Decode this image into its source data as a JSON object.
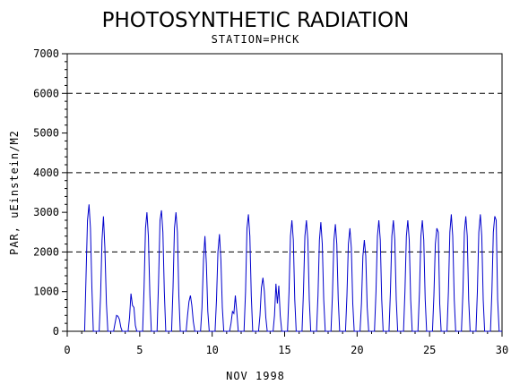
{
  "chart_data": {
    "type": "line",
    "title": "PHOTOSYNTHETIC RADIATION",
    "subtitle": "STATION=PHCK",
    "xlabel": "NOV 1998",
    "ylabel": "PAR, uEinstein/M2",
    "xlim": [
      0,
      30
    ],
    "ylim": [
      0,
      7000
    ],
    "x_ticks": [
      0,
      5,
      10,
      15,
      20,
      25,
      30
    ],
    "y_ticks": [
      0,
      1000,
      2000,
      3000,
      4000,
      5000,
      6000,
      7000
    ],
    "reference_lines": [
      2000,
      4000,
      6000
    ],
    "grid": false,
    "legend": "none",
    "series": [
      {
        "color": "#0000cc",
        "x": [
          1.2,
          1.3,
          1.4,
          1.5,
          1.6,
          1.7,
          1.8,
          2.2,
          2.3,
          2.4,
          2.5,
          2.6,
          2.7,
          2.8,
          3.2,
          3.3,
          3.4,
          3.5,
          3.6,
          3.7,
          3.8,
          4.2,
          4.3,
          4.4,
          4.5,
          4.6,
          4.7,
          4.8,
          5.2,
          5.3,
          5.4,
          5.5,
          5.6,
          5.7,
          5.8,
          6.2,
          6.3,
          6.4,
          6.5,
          6.6,
          6.7,
          6.8,
          7.2,
          7.3,
          7.4,
          7.5,
          7.6,
          7.7,
          7.8,
          8.2,
          8.3,
          8.4,
          8.5,
          8.6,
          8.7,
          8.8,
          9.2,
          9.3,
          9.4,
          9.5,
          9.6,
          9.7,
          9.8,
          10.2,
          10.3,
          10.4,
          10.5,
          10.6,
          10.7,
          10.8,
          11.2,
          11.3,
          11.4,
          11.5,
          11.6,
          11.7,
          11.8,
          12.2,
          12.3,
          12.4,
          12.5,
          12.6,
          12.7,
          12.8,
          13.2,
          13.3,
          13.4,
          13.5,
          13.6,
          13.7,
          13.8,
          14.2,
          14.3,
          14.4,
          14.5,
          14.6,
          14.7,
          14.8,
          15.2,
          15.3,
          15.4,
          15.5,
          15.6,
          15.7,
          15.8,
          16.2,
          16.3,
          16.4,
          16.5,
          16.6,
          16.7,
          16.8,
          17.2,
          17.3,
          17.4,
          17.5,
          17.6,
          17.7,
          17.8,
          18.2,
          18.3,
          18.4,
          18.5,
          18.6,
          18.7,
          18.8,
          19.2,
          19.3,
          19.4,
          19.5,
          19.6,
          19.7,
          19.8,
          20.2,
          20.3,
          20.4,
          20.5,
          20.6,
          20.7,
          20.8,
          21.2,
          21.3,
          21.4,
          21.5,
          21.6,
          21.7,
          21.8,
          22.2,
          22.3,
          22.4,
          22.5,
          22.6,
          22.7,
          22.8,
          23.2,
          23.3,
          23.4,
          23.5,
          23.6,
          23.7,
          23.8,
          24.2,
          24.3,
          24.4,
          24.5,
          24.6,
          24.7,
          24.8,
          25.2,
          25.3,
          25.4,
          25.5,
          25.6,
          25.7,
          25.8,
          26.2,
          26.3,
          26.4,
          26.5,
          26.6,
          26.7,
          26.8,
          27.2,
          27.3,
          27.4,
          27.5,
          27.6,
          27.7,
          27.8,
          28.2,
          28.3,
          28.4,
          28.5,
          28.6,
          28.7,
          28.8,
          29.2,
          29.3,
          29.4,
          29.5,
          29.6,
          29.7,
          29.8,
          30.0
        ],
        "y": [
          0,
          1400,
          2800,
          3200,
          2600,
          1100,
          0,
          0,
          900,
          2300,
          2900,
          2100,
          700,
          0,
          0,
          200,
          400,
          380,
          300,
          100,
          0,
          0,
          350,
          950,
          650,
          600,
          150,
          0,
          0,
          1100,
          2600,
          3000,
          2400,
          900,
          0,
          0,
          1200,
          2800,
          3050,
          2500,
          1000,
          0,
          0,
          1100,
          2600,
          3000,
          2500,
          900,
          0,
          0,
          400,
          750,
          900,
          650,
          250,
          0,
          0,
          600,
          1800,
          2400,
          1700,
          500,
          0,
          0,
          800,
          2000,
          2450,
          1800,
          600,
          0,
          0,
          200,
          500,
          450,
          900,
          500,
          0,
          0,
          1000,
          2600,
          2950,
          2400,
          900,
          0,
          0,
          400,
          1100,
          1350,
          1000,
          350,
          0,
          0,
          400,
          1200,
          700,
          1150,
          400,
          0,
          0,
          1000,
          2400,
          2800,
          2300,
          800,
          0,
          0,
          1000,
          2400,
          2800,
          2300,
          800,
          0,
          0,
          900,
          2300,
          2750,
          2200,
          800,
          0,
          0,
          900,
          2300,
          2700,
          2200,
          800,
          0,
          0,
          900,
          2200,
          2600,
          2100,
          700,
          0,
          0,
          700,
          1900,
          2300,
          1900,
          600,
          0,
          0,
          1000,
          2400,
          2800,
          2300,
          800,
          0,
          0,
          1000,
          2400,
          2800,
          2300,
          800,
          0,
          0,
          1000,
          2400,
          2800,
          2300,
          800,
          0,
          0,
          1000,
          2400,
          2800,
          2300,
          800,
          0,
          0,
          900,
          2200,
          2600,
          2500,
          700,
          0,
          0,
          1000,
          2500,
          2950,
          2400,
          800,
          0,
          0,
          1000,
          2500,
          2900,
          2400,
          800,
          0,
          0,
          1000,
          2500,
          2950,
          2400,
          800,
          0,
          0,
          1000,
          2500,
          2900,
          2800,
          800,
          0,
          0
        ]
      }
    ]
  }
}
